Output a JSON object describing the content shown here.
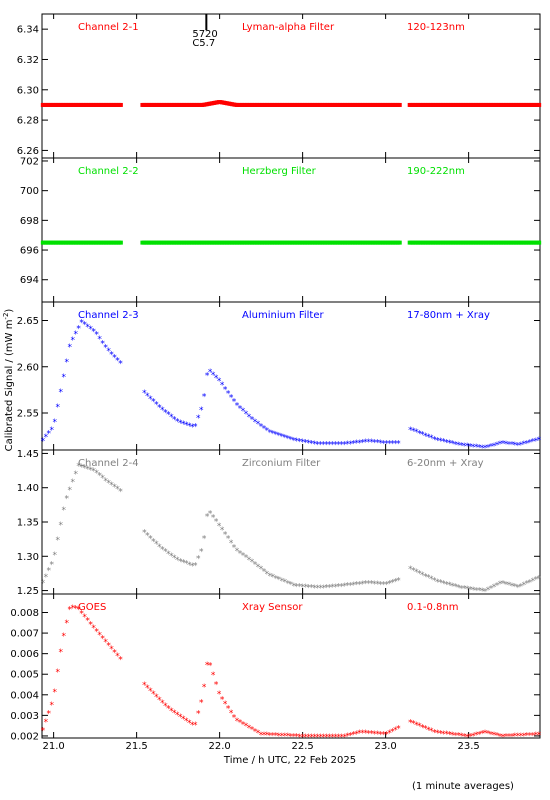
{
  "chart_data": {
    "type": "scatter",
    "xlabel": "Time / h UTC, 22 Feb 2025",
    "ylabel": "Calibrated Signal / (mW m",
    "ylabel_sup": "-2",
    "ylabel_end": ")",
    "footer_note": "(1 minute averages)",
    "xlim": [
      20.93,
      23.93
    ],
    "x_ticks": [
      21.0,
      21.5,
      22.0,
      22.5,
      23.0,
      23.5
    ],
    "x_tick_labels": [
      "21.0",
      "21.5",
      "22.0",
      "22.5",
      "23.0",
      "23.5"
    ],
    "grid": false,
    "flare_marker": {
      "time": 21.92,
      "code": "5720",
      "class": "C5.7"
    },
    "panels": [
      {
        "channel": "Channel 2-1",
        "filter": "Lyman-alpha Filter",
        "band": "120-123nm",
        "color": "#ff0000",
        "ylim": [
          6.255,
          6.35
        ],
        "y_ticks": [
          6.26,
          6.28,
          6.3,
          6.32,
          6.34
        ],
        "y_tick_labels": [
          "6.26",
          "6.28",
          "6.30",
          "6.32",
          "6.34"
        ],
        "points": [
          [
            20.93,
            6.29
          ],
          [
            21.2,
            6.29
          ],
          [
            21.4,
            6.29
          ],
          [
            21.55,
            6.29
          ],
          [
            21.8,
            6.29
          ],
          [
            21.9,
            6.29
          ],
          [
            21.95,
            6.291
          ],
          [
            22.0,
            6.292
          ],
          [
            22.05,
            6.291
          ],
          [
            22.1,
            6.29
          ],
          [
            22.5,
            6.29
          ],
          [
            23.0,
            6.29
          ],
          [
            23.1,
            6.29
          ],
          [
            23.15,
            6.29
          ],
          [
            23.5,
            6.29
          ],
          [
            23.93,
            6.29
          ]
        ]
      },
      {
        "channel": "Channel 2-2",
        "filter": "Herzberg Filter",
        "band": "190-222nm",
        "color": "#00e000",
        "ylim": [
          692.5,
          702.2
        ],
        "y_ticks": [
          694,
          696,
          698,
          700,
          702
        ],
        "y_tick_labels": [
          "694",
          "696",
          "698",
          "700",
          "702"
        ],
        "points": [
          [
            20.93,
            696.5
          ],
          [
            21.4,
            696.5
          ],
          [
            21.55,
            696.5
          ],
          [
            22.0,
            696.5
          ],
          [
            22.5,
            696.5
          ],
          [
            23.1,
            696.5
          ],
          [
            23.15,
            696.5
          ],
          [
            23.5,
            696.5
          ],
          [
            23.93,
            696.5
          ]
        ]
      },
      {
        "channel": "Channel 2-3",
        "filter": "Aluminium Filter",
        "band": "17-80nm + Xray",
        "color": "#0000ff",
        "ylim": [
          2.51,
          2.67
        ],
        "y_ticks": [
          2.55,
          2.6,
          2.65
        ],
        "y_tick_labels": [
          "2.55",
          "2.60",
          "2.65"
        ],
        "points": [
          [
            20.93,
            2.52
          ],
          [
            21.0,
            2.535
          ],
          [
            21.05,
            2.58
          ],
          [
            21.1,
            2.625
          ],
          [
            21.17,
            2.649
          ],
          [
            21.25,
            2.638
          ],
          [
            21.32,
            2.62
          ],
          [
            21.4,
            2.605
          ],
          [
            21.55,
            2.572
          ],
          [
            21.65,
            2.555
          ],
          [
            21.75,
            2.541
          ],
          [
            21.85,
            2.535
          ],
          [
            21.9,
            2.56
          ],
          [
            21.93,
            2.598
          ],
          [
            22.0,
            2.585
          ],
          [
            22.1,
            2.56
          ],
          [
            22.2,
            2.543
          ],
          [
            22.3,
            2.53
          ],
          [
            22.45,
            2.521
          ],
          [
            22.6,
            2.517
          ],
          [
            22.75,
            2.517
          ],
          [
            22.9,
            2.52
          ],
          [
            23.0,
            2.518
          ],
          [
            23.1,
            2.518
          ],
          [
            23.15,
            2.533
          ],
          [
            23.3,
            2.522
          ],
          [
            23.45,
            2.516
          ],
          [
            23.6,
            2.513
          ],
          [
            23.7,
            2.518
          ],
          [
            23.8,
            2.516
          ],
          [
            23.93,
            2.522
          ]
        ]
      },
      {
        "channel": "Channel 2-4",
        "filter": "Zirconium Filter",
        "band": "6-20nm + Xray",
        "color": "#808080",
        "ylim": [
          1.245,
          1.455
        ],
        "y_ticks": [
          1.25,
          1.3,
          1.35,
          1.4,
          1.45
        ],
        "y_tick_labels": [
          "1.25",
          "1.30",
          "1.35",
          "1.40",
          "1.45"
        ],
        "points": [
          [
            20.93,
            1.26
          ],
          [
            21.0,
            1.295
          ],
          [
            21.07,
            1.38
          ],
          [
            21.15,
            1.433
          ],
          [
            21.25,
            1.425
          ],
          [
            21.32,
            1.41
          ],
          [
            21.4,
            1.397
          ],
          [
            21.55,
            1.335
          ],
          [
            21.65,
            1.312
          ],
          [
            21.75,
            1.295
          ],
          [
            21.85,
            1.286
          ],
          [
            21.9,
            1.315
          ],
          [
            21.93,
            1.368
          ],
          [
            22.0,
            1.345
          ],
          [
            22.1,
            1.31
          ],
          [
            22.2,
            1.292
          ],
          [
            22.3,
            1.273
          ],
          [
            22.45,
            1.258
          ],
          [
            22.6,
            1.255
          ],
          [
            22.75,
            1.258
          ],
          [
            22.9,
            1.262
          ],
          [
            23.0,
            1.26
          ],
          [
            23.1,
            1.268
          ],
          [
            23.15,
            1.283
          ],
          [
            23.3,
            1.265
          ],
          [
            23.45,
            1.255
          ],
          [
            23.6,
            1.25
          ],
          [
            23.7,
            1.262
          ],
          [
            23.8,
            1.256
          ],
          [
            23.93,
            1.27
          ]
        ]
      },
      {
        "channel": "GOES",
        "filter": "Xray Sensor",
        "band": "0.1-0.8nm",
        "color": "#ff0000",
        "ylim": [
          0.0019,
          0.0089
        ],
        "y_ticks": [
          0.002,
          0.003,
          0.004,
          0.005,
          0.006,
          0.007,
          0.008
        ],
        "y_tick_labels": [
          "0.002",
          "0.003",
          "0.004",
          "0.005",
          "0.006",
          "0.007",
          "0.008"
        ],
        "points": [
          [
            20.93,
            0.0022
          ],
          [
            21.0,
            0.0038
          ],
          [
            21.05,
            0.0065
          ],
          [
            21.1,
            0.0083
          ],
          [
            21.15,
            0.0082
          ],
          [
            21.25,
            0.0072
          ],
          [
            21.4,
            0.0058
          ],
          [
            21.55,
            0.0045
          ],
          [
            21.7,
            0.0033
          ],
          [
            21.85,
            0.0025
          ],
          [
            21.9,
            0.004
          ],
          [
            21.93,
            0.0058
          ],
          [
            22.0,
            0.004
          ],
          [
            22.1,
            0.0028
          ],
          [
            22.25,
            0.0021
          ],
          [
            22.5,
            0.002
          ],
          [
            22.75,
            0.002
          ],
          [
            22.85,
            0.0022
          ],
          [
            23.0,
            0.0021
          ],
          [
            23.1,
            0.0025
          ],
          [
            23.15,
            0.0027
          ],
          [
            23.3,
            0.0022
          ],
          [
            23.5,
            0.002
          ],
          [
            23.6,
            0.0022
          ],
          [
            23.7,
            0.002
          ],
          [
            23.93,
            0.0021
          ]
        ]
      }
    ]
  }
}
